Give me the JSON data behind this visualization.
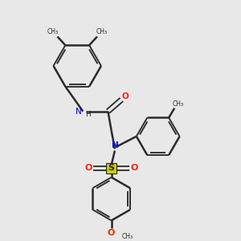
{
  "background_color": "#e8e8e8",
  "bond_color": "#2a2a2a",
  "N_color": "#0000ee",
  "O_color": "#ff2200",
  "S_color": "#cccc00",
  "H_color": "#2a2a2a",
  "figsize": [
    3.0,
    3.0
  ],
  "dpi": 100,
  "xlim": [
    0,
    10
  ],
  "ylim": [
    0,
    10
  ]
}
